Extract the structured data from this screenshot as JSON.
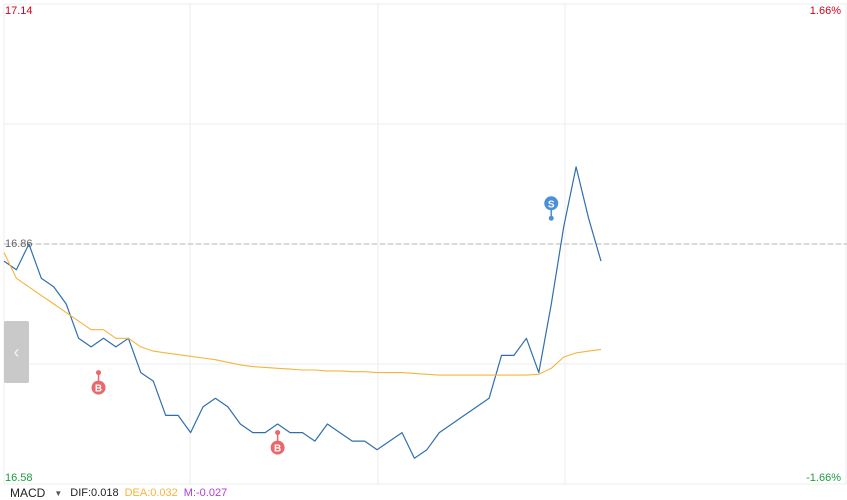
{
  "axis": {
    "price_high": "17.14",
    "price_low": "16.58",
    "pct_high": "1.66%",
    "pct_low": "-1.66%",
    "reference": "16.86"
  },
  "indicator": {
    "name": "MACD",
    "dif": "DIF:0.018",
    "dea": "DEA:0.032",
    "m": "M:-0.027"
  },
  "colors": {
    "price_line": "#2f6fb0",
    "avg_line": "#f5b43c",
    "up": "#d0021b",
    "down": "#1b9e3e",
    "buy_marker": "#e8686b",
    "sell_marker": "#4a90d9"
  },
  "icons": {
    "side_handle": "chevron-left-icon"
  },
  "chart_data": {
    "type": "line",
    "ylim": [
      16.58,
      17.14
    ],
    "reference": 16.86,
    "grid": true,
    "x": [
      0,
      5,
      10,
      15,
      20,
      25,
      30,
      35,
      40,
      45,
      50,
      55,
      60,
      65,
      70,
      75,
      80,
      85,
      90,
      95,
      100,
      105,
      110,
      115,
      120,
      125,
      130,
      135,
      140,
      145,
      150,
      155,
      160,
      165,
      170,
      175,
      180,
      185,
      190,
      195,
      200,
      205,
      210,
      215,
      220,
      225,
      230,
      235,
      240
    ],
    "series": [
      {
        "values": [
          16.84,
          16.83,
          16.86,
          16.82,
          16.81,
          16.79,
          16.75,
          16.74,
          16.75,
          16.74,
          16.75,
          16.71,
          16.7,
          16.66,
          16.66,
          16.64,
          16.67,
          16.68,
          16.67,
          16.65,
          16.64,
          16.64,
          16.65,
          16.64,
          16.64,
          16.63,
          16.65,
          16.64,
          16.63,
          16.63,
          16.62,
          16.63,
          16.64,
          16.61,
          16.62,
          16.64,
          16.65,
          16.66,
          16.67,
          16.68,
          16.73,
          16.73,
          16.75,
          16.71,
          16.79,
          16.88,
          16.95,
          16.89,
          16.84
        ]
      },
      {
        "values": [
          16.85,
          16.82,
          16.81,
          16.8,
          16.79,
          16.78,
          16.77,
          16.76,
          16.76,
          16.75,
          16.75,
          16.74,
          16.735,
          16.733,
          16.731,
          16.729,
          16.727,
          16.725,
          16.722,
          16.719,
          16.717,
          16.716,
          16.715,
          16.714,
          16.713,
          16.713,
          16.712,
          16.712,
          16.711,
          16.711,
          16.71,
          16.71,
          16.71,
          16.709,
          16.708,
          16.707,
          16.707,
          16.707,
          16.707,
          16.707,
          16.707,
          16.707,
          16.707,
          16.708,
          16.715,
          16.728,
          16.733,
          16.735,
          16.737
        ]
      }
    ],
    "markers": [
      {
        "label": "B",
        "x": 38,
        "y": 16.71
      },
      {
        "label": "B",
        "x": 110,
        "y": 16.64
      },
      {
        "label": "S",
        "x": 220,
        "y": 16.89
      }
    ]
  }
}
